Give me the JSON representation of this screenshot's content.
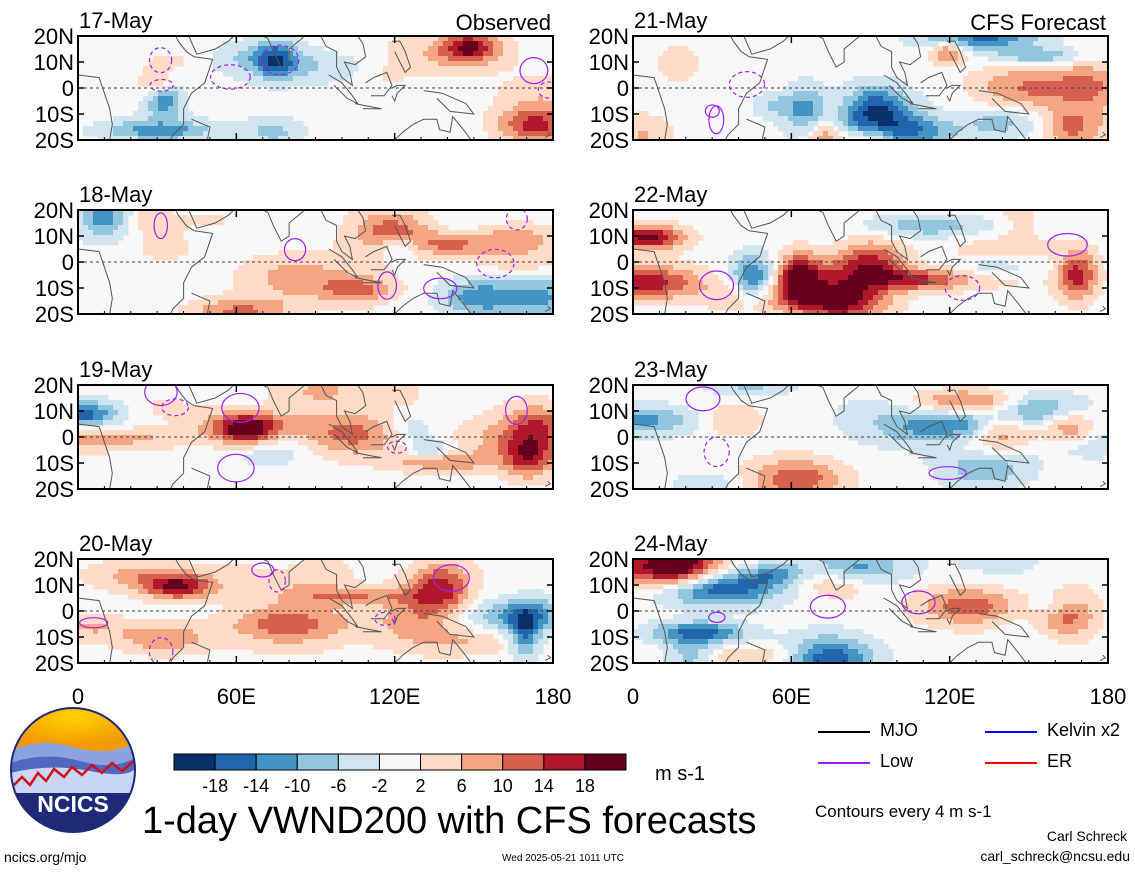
{
  "chart_data": {
    "type": "heatmap",
    "title": "1-day VWND200 with CFS forecasts",
    "variable": "VWND200",
    "units": "m s-1",
    "contour_note": "Contours every 4 m s-1",
    "column_titles": [
      "Observed",
      "CFS Forecast"
    ],
    "xlim": [
      0,
      180
    ],
    "ylim": [
      -20,
      20
    ],
    "x_ticks": [
      "0",
      "60E",
      "120E",
      "180"
    ],
    "y_ticks": [
      "20N",
      "10N",
      "0",
      "10S",
      "20S"
    ],
    "colorbar": {
      "ticks": [
        "-18",
        "-14",
        "-10",
        "-6",
        "-2",
        "2",
        "6",
        "10",
        "14",
        "18"
      ],
      "colors": [
        "#08306b",
        "#2166ac",
        "#4393c3",
        "#92c5de",
        "#d1e5f0",
        "#f7f7f7",
        "#fddbc7",
        "#f4a582",
        "#d6604d",
        "#b2182b",
        "#67001f"
      ]
    },
    "panels": [
      {
        "date": "17-May",
        "kind": "observed"
      },
      {
        "date": "18-May",
        "kind": "observed"
      },
      {
        "date": "19-May",
        "kind": "observed"
      },
      {
        "date": "20-May",
        "kind": "observed"
      },
      {
        "date": "21-May",
        "kind": "forecast"
      },
      {
        "date": "22-May",
        "kind": "forecast"
      },
      {
        "date": "23-May",
        "kind": "forecast"
      },
      {
        "date": "24-May",
        "kind": "forecast"
      }
    ],
    "contour_legend": [
      {
        "label": "MJO",
        "color": "#000000"
      },
      {
        "label": "Kelvin x2",
        "color": "#0000ff"
      },
      {
        "label": "Low",
        "color": "#a020f0"
      },
      {
        "label": "ER",
        "color": "#ff0000"
      }
    ]
  },
  "footer": {
    "author": "Carl Schreck",
    "email": "carl_schreck@ncsu.edu",
    "site": "ncics.org/mjo",
    "timestamp": "Wed 2025-05-21 1011 UTC",
    "logo_text": "NCICS"
  }
}
